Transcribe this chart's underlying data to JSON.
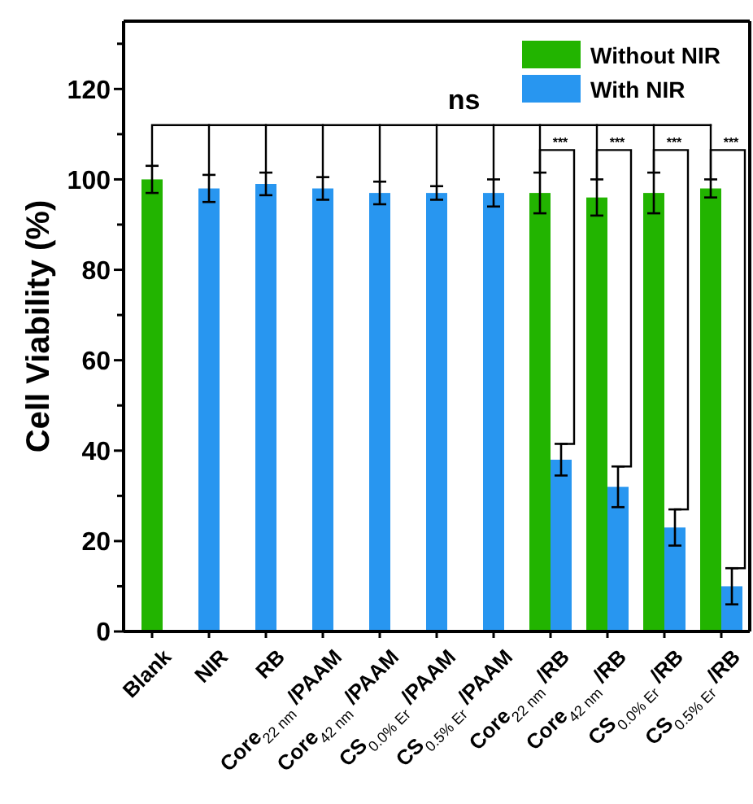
{
  "chart_data": {
    "type": "bar",
    "ylabel": "Cell Viability (%)",
    "categories": [
      "Blank",
      "NIR",
      "RB",
      "Core$_{22 nm}$ /PAAM",
      "Core$_{42 nm}$ /PAAM",
      "CS$_{0.0% Er}$ /PAAM",
      "CS$_{0.5% Er}$ /PAAM",
      "Core$_{22 nm}$ /RB",
      "Core$_{42 nm}$ /RB",
      "CS$_{0.0% Er}$ /RB",
      "CS$_{0.5% Er}$ /RB"
    ],
    "series": [
      {
        "name": "Without NIR",
        "color": "#22b400",
        "values": [
          100,
          null,
          null,
          null,
          null,
          null,
          null,
          97,
          96,
          97,
          98
        ],
        "errors": [
          3,
          null,
          null,
          null,
          null,
          null,
          null,
          4.5,
          4,
          4.5,
          2
        ]
      },
      {
        "name": "With NIR",
        "color": "#2896f0",
        "values": [
          null,
          98,
          99,
          98,
          97,
          97,
          97,
          38,
          32,
          23,
          10
        ],
        "errors": [
          null,
          3,
          2.5,
          2.5,
          2.5,
          1.5,
          3,
          3.5,
          4.5,
          4,
          4
        ]
      }
    ],
    "ylim": [
      0,
      135
    ],
    "yticks": [
      0,
      {
        "value": 10,
        "label": null
      },
      20,
      {
        "value": 30,
        "label": null
      },
      40,
      {
        "value": 50,
        "label": null
      },
      60,
      {
        "value": 70,
        "label": null
      },
      80,
      {
        "value": 90,
        "label": null
      },
      100,
      {
        "value": 110,
        "label": null
      },
      120,
      {
        "value": 130,
        "label": null
      }
    ],
    "annotations": [
      "ns",
      "***",
      "***",
      "***",
      "***"
    ],
    "legend": "top right"
  }
}
